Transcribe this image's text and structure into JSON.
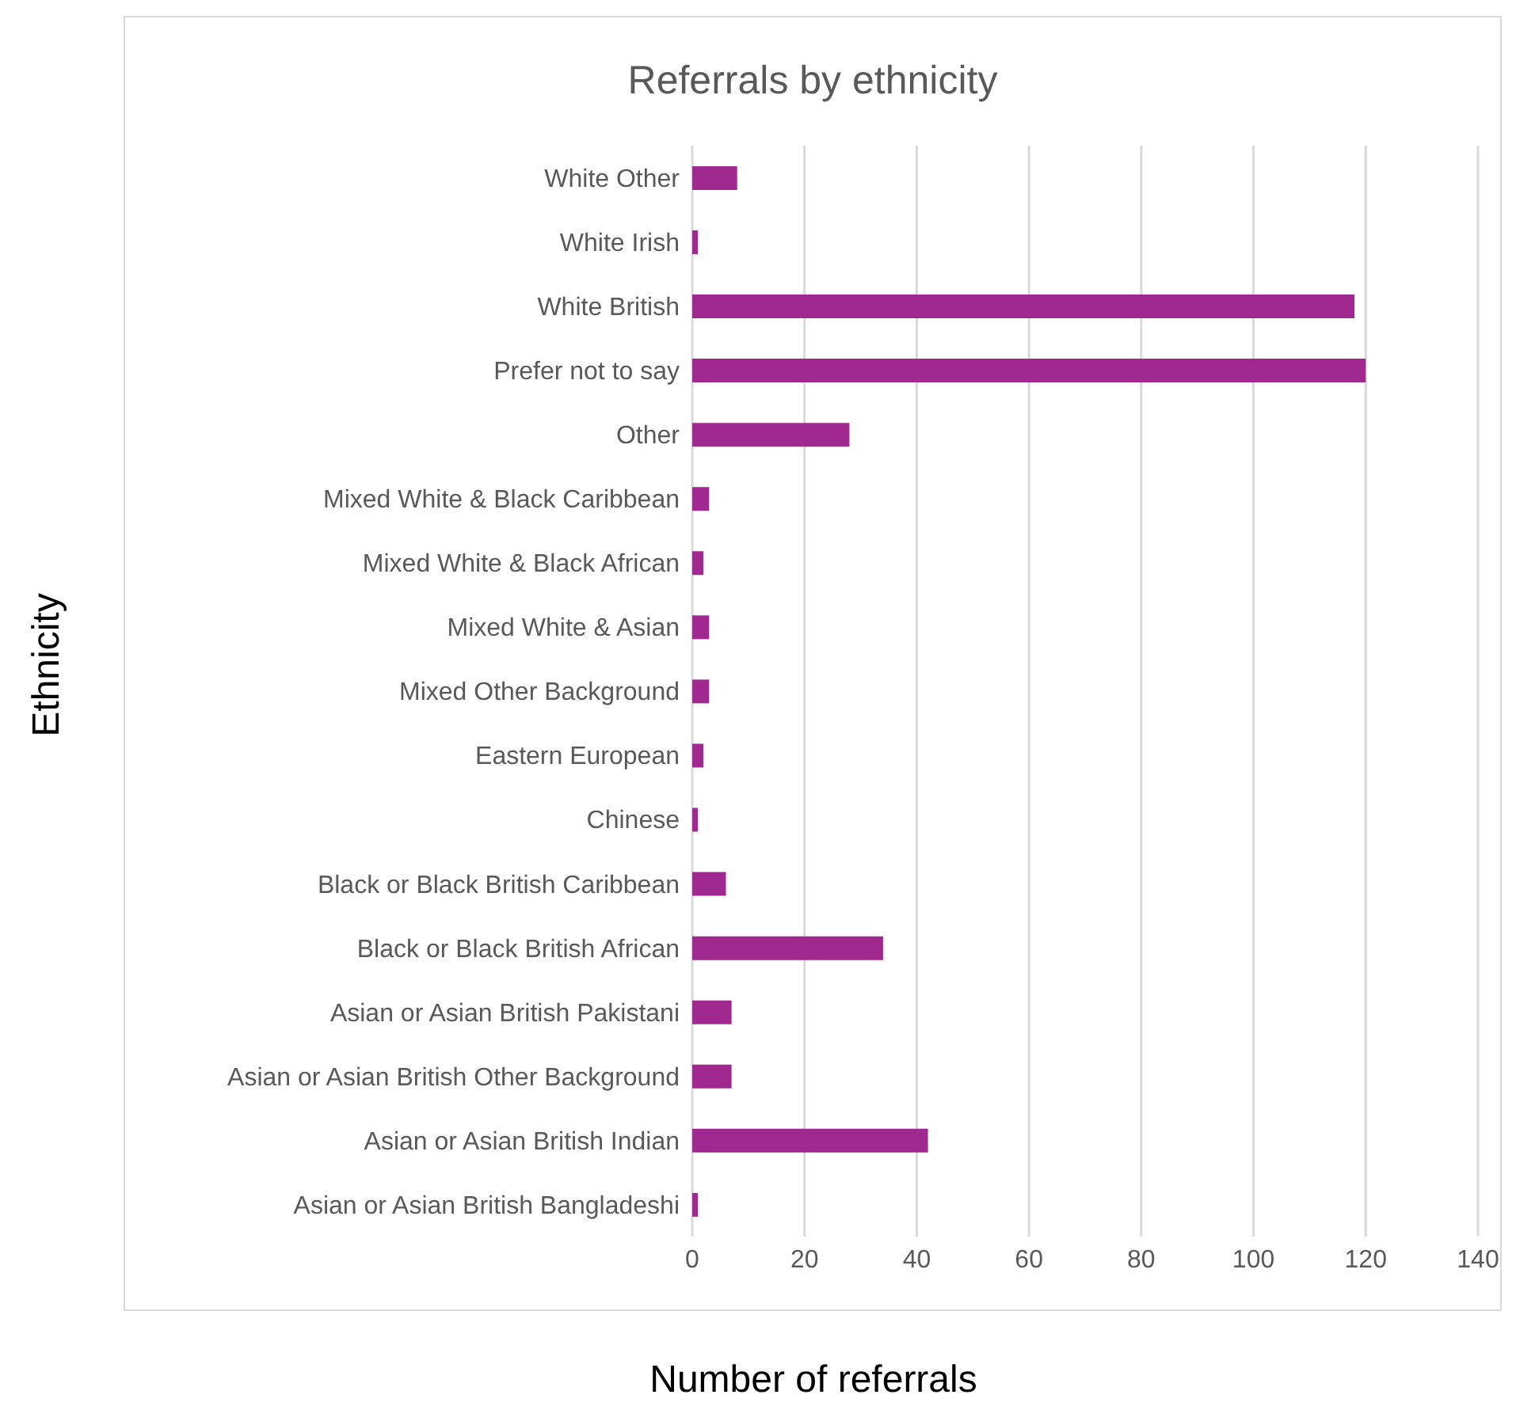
{
  "chart_data": {
    "type": "bar",
    "orientation": "horizontal",
    "title": "Referrals by ethnicity",
    "xlabel": "Number of referrals",
    "ylabel": "Ethnicity",
    "categories": [
      "White Other",
      "White Irish",
      "White British",
      "Prefer not to say",
      "Other",
      "Mixed White & Black Caribbean",
      "Mixed White & Black African",
      "Mixed White & Asian",
      "Mixed Other Background",
      "Eastern European",
      "Chinese",
      "Black or Black British Caribbean",
      "Black or Black British African",
      "Asian or Asian British Pakistani",
      "Asian or Asian British Other Background",
      "Asian or Asian British Indian",
      "Asian or Asian British Bangladeshi"
    ],
    "values": [
      8,
      1,
      118,
      120,
      28,
      3,
      2,
      3,
      3,
      2,
      1,
      6,
      34,
      7,
      7,
      42,
      1
    ],
    "color": "#a0298f",
    "xlim": [
      0,
      140
    ],
    "xticks": [
      0,
      20,
      40,
      60,
      80,
      100,
      120,
      140
    ],
    "grid": "x",
    "legend": false
  }
}
